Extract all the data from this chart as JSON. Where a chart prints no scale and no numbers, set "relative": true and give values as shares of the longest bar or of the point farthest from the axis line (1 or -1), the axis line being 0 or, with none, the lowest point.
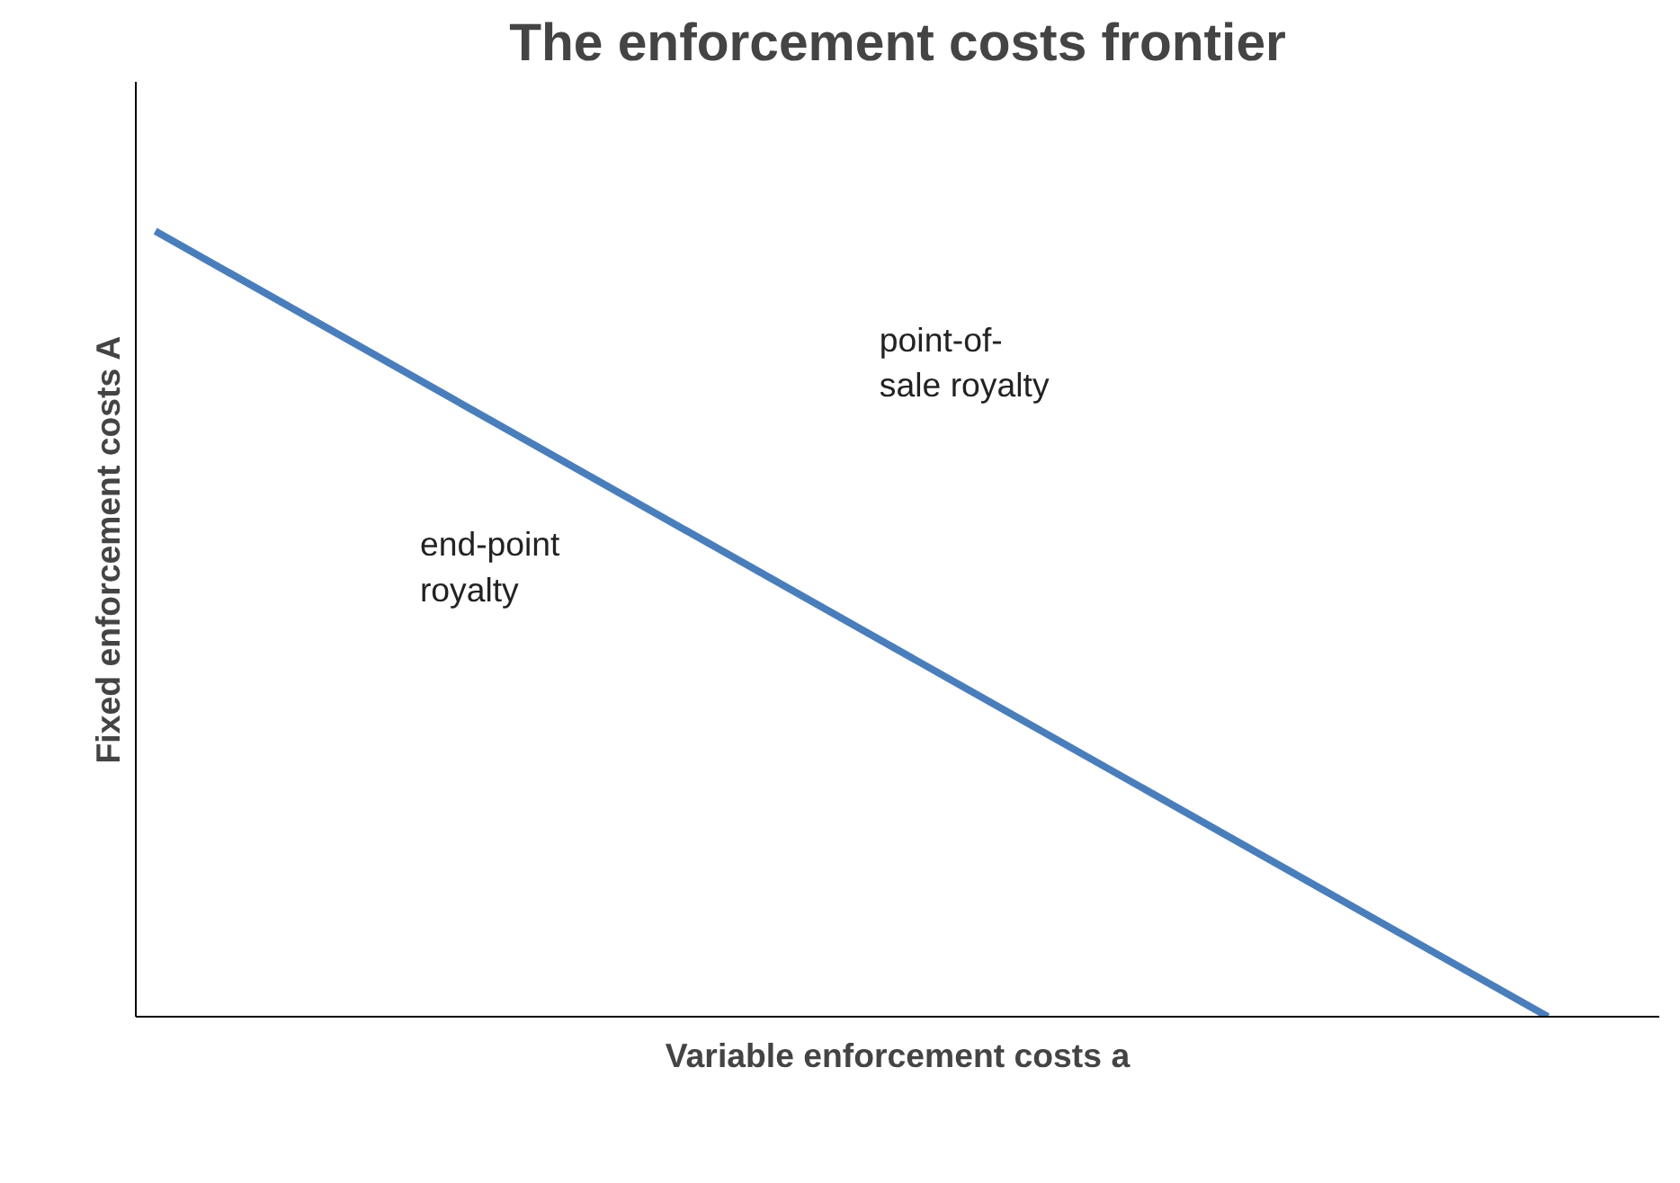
{
  "chart_data": {
    "type": "line",
    "title": "The enforcement costs frontier",
    "xlabel": "Variable enforcement costs a",
    "ylabel": "Fixed enforcement costs A",
    "categories": [
      null,
      null
    ],
    "relative": true,
    "series": [
      {
        "color": "#4a7ebb",
        "values": [
          1,
          0
        ]
      }
    ],
    "annotations": [
      "point-of-\nsale royalty",
      "end-point\nroyalty"
    ],
    "grid": false,
    "marker": "none",
    "line_style": "solid"
  }
}
